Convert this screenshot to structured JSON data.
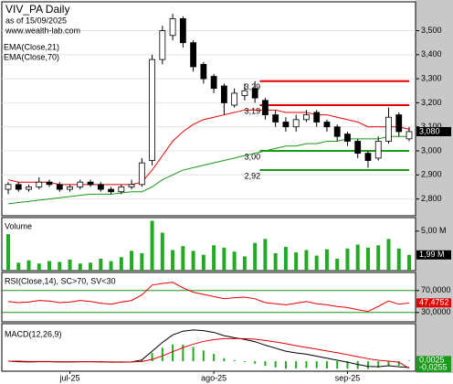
{
  "chart_data": [
    {
      "type": "candlestick",
      "title": "VIV_PA Daily",
      "subtitle": "as of 15/09/2025",
      "source": "www.wealth-lab.com",
      "open": [
        2.84,
        2.86,
        2.84,
        2.85,
        2.87,
        2.86,
        2.84,
        2.85,
        2.87,
        2.86,
        2.84,
        2.83,
        2.85,
        2.86,
        2.96,
        3.38,
        3.48,
        3.55,
        3.45,
        3.36,
        3.31,
        3.27,
        3.19,
        3.23,
        3.26,
        3.21,
        3.15,
        3.12,
        3.1,
        3.13,
        3.16,
        3.12,
        3.1,
        3.07,
        3.04,
        2.99,
        2.97,
        3.04,
        3.15,
        3.05
      ],
      "high": [
        2.87,
        2.87,
        2.86,
        2.89,
        2.88,
        2.87,
        2.86,
        2.88,
        2.88,
        2.87,
        2.85,
        2.86,
        2.88,
        2.97,
        3.4,
        3.52,
        3.57,
        3.56,
        3.46,
        3.37,
        3.32,
        3.28,
        3.26,
        3.28,
        3.29,
        3.22,
        3.17,
        3.14,
        3.15,
        3.17,
        3.17,
        3.13,
        3.11,
        3.08,
        3.05,
        3.0,
        3.06,
        3.18,
        3.16,
        3.1
      ],
      "low": [
        2.82,
        2.83,
        2.83,
        2.84,
        2.85,
        2.83,
        2.83,
        2.84,
        2.85,
        2.83,
        2.82,
        2.82,
        2.84,
        2.85,
        2.94,
        3.36,
        3.46,
        3.43,
        3.33,
        3.28,
        3.24,
        3.15,
        3.18,
        3.21,
        3.2,
        3.13,
        3.1,
        3.08,
        3.08,
        3.12,
        3.1,
        3.08,
        3.04,
        3.02,
        2.97,
        2.93,
        2.96,
        3.03,
        3.06,
        3.04
      ],
      "close": [
        2.86,
        2.84,
        2.85,
        2.87,
        2.86,
        2.84,
        2.85,
        2.87,
        2.86,
        2.84,
        2.83,
        2.85,
        2.86,
        2.95,
        3.38,
        3.5,
        3.55,
        3.45,
        3.35,
        3.3,
        3.26,
        3.2,
        3.24,
        3.25,
        3.22,
        3.15,
        3.12,
        3.1,
        3.13,
        3.15,
        3.12,
        3.1,
        3.06,
        3.04,
        2.99,
        2.96,
        3.04,
        3.14,
        3.08,
        3.08
      ],
      "series": [
        {
          "name": "EMA(Close,21)",
          "color": "#e00000",
          "values": [
            2.88,
            2.87,
            2.87,
            2.87,
            2.87,
            2.86,
            2.86,
            2.86,
            2.86,
            2.86,
            2.86,
            2.86,
            2.86,
            2.87,
            2.92,
            2.98,
            3.04,
            3.08,
            3.11,
            3.13,
            3.14,
            3.15,
            3.16,
            3.17,
            3.17,
            3.17,
            3.17,
            3.16,
            3.16,
            3.16,
            3.15,
            3.15,
            3.14,
            3.13,
            3.12,
            3.1,
            3.1,
            3.1,
            3.1,
            3.09
          ]
        },
        {
          "name": "EMA(Close,70)",
          "color": "#1a9a1a",
          "values": [
            2.78,
            2.785,
            2.79,
            2.795,
            2.8,
            2.805,
            2.81,
            2.815,
            2.82,
            2.82,
            2.82,
            2.825,
            2.83,
            2.83,
            2.85,
            2.88,
            2.9,
            2.92,
            2.93,
            2.94,
            2.95,
            2.96,
            2.97,
            2.98,
            2.99,
            3.0,
            3.01,
            3.02,
            3.02,
            3.03,
            3.03,
            3.04,
            3.04,
            3.05,
            3.05,
            3.05,
            3.05,
            3.06,
            3.06,
            3.06
          ]
        }
      ],
      "levels": [
        {
          "value": 3.29,
          "label": "3,29",
          "color": "#e00000"
        },
        {
          "value": 3.19,
          "label": "3,19",
          "color": "#e00000"
        },
        {
          "value": 3.0,
          "label": "3,00",
          "color": "#1a9a1a"
        },
        {
          "value": 2.92,
          "label": "2,92",
          "color": "#1a9a1a"
        }
      ],
      "up_color": "#ffffff",
      "down_color": "#000000",
      "ylim": [
        2.73,
        3.62
      ],
      "yticks": [
        {
          "value": 2.8,
          "label": "2,800"
        },
        {
          "value": 2.9,
          "label": "2,900"
        },
        {
          "value": 3.0,
          "label": "3,000"
        },
        {
          "value": 3.1,
          "label": "3,100"
        },
        {
          "value": 3.2,
          "label": "3,200"
        },
        {
          "value": 3.3,
          "label": "3,300"
        },
        {
          "value": 3.4,
          "label": "3,400"
        },
        {
          "value": 3.5,
          "label": "3,500"
        }
      ],
      "last_labels": [
        {
          "value": 3.08,
          "label": "3,080",
          "color": "#000000"
        }
      ],
      "grid": true
    },
    {
      "type": "bar",
      "title": "Volume",
      "color": "#22aa22",
      "values": [
        4.6,
        1.0,
        1.3,
        0.9,
        1.2,
        1.1,
        1.4,
        0.9,
        1.0,
        1.5,
        1.2,
        1.7,
        2.5,
        2.2,
        6.3,
        4.8,
        2.6,
        3.1,
        2.5,
        2.0,
        3.2,
        2.9,
        2.4,
        1.8,
        3.5,
        4.0,
        2.2,
        3.0,
        2.3,
        2.6,
        1.9,
        2.7,
        1.5,
        2.8,
        3.3,
        2.9,
        3.2,
        4.0,
        2.8,
        1.99
      ],
      "ylim": [
        0,
        6.7
      ],
      "yticks": [
        {
          "value": 5,
          "label": "5,00 M"
        }
      ],
      "last_labels": [
        {
          "value": 1.99,
          "label": "1,99 M",
          "color": "#000000"
        }
      ]
    },
    {
      "type": "line",
      "title": "RSI(Close,14), SC>70, SV<30",
      "color": "#e00000",
      "band_color": "#1a9a1a",
      "values": [
        50,
        48,
        49,
        52,
        51,
        48,
        49,
        52,
        50,
        47,
        45,
        49,
        52,
        62,
        80,
        83,
        85,
        75,
        67,
        63,
        59,
        55,
        57,
        58,
        55,
        48,
        46,
        44,
        47,
        50,
        46,
        44,
        41,
        39,
        35,
        32,
        41,
        51,
        45,
        47.4752
      ],
      "ylim": [
        13,
        103
      ],
      "yticks": [
        {
          "value": 70,
          "label": "70,0000"
        },
        {
          "value": 30,
          "label": "30,0000"
        }
      ],
      "last_labels": [
        {
          "value": 47.4752,
          "label": "47,4752",
          "color": "#e00000"
        }
      ]
    },
    {
      "type": "macd",
      "title": "MACD(12,26,9)",
      "categories": [
        null,
        null,
        null,
        null,
        null,
        null,
        "jul-25",
        null,
        null,
        null,
        null,
        null,
        null,
        null,
        null,
        null,
        null,
        null,
        null,
        null,
        "ago-25",
        null,
        null,
        null,
        null,
        null,
        null,
        null,
        null,
        null,
        null,
        null,
        null,
        "sep-25",
        null,
        null,
        null,
        null,
        null,
        null
      ],
      "lines": [
        {
          "color": "#000000",
          "values": [
            0,
            -0.002,
            -0.003,
            -0.002,
            -0.002,
            -0.003,
            -0.003,
            -0.002,
            -0.002,
            -0.003,
            -0.004,
            -0.004,
            -0.003,
            0.005,
            0.04,
            0.075,
            0.105,
            0.12,
            0.125,
            0.122,
            0.115,
            0.102,
            0.094,
            0.087,
            0.078,
            0.064,
            0.052,
            0.04,
            0.033,
            0.028,
            0.02,
            0.012,
            0.004,
            -0.004,
            -0.013,
            -0.021,
            -0.022,
            -0.018,
            -0.022,
            -0.0255
          ]
        },
        {
          "color": "#e00000",
          "values": [
            0,
            0,
            -0.001,
            -0.001,
            -0.001,
            -0.002,
            -0.002,
            -0.002,
            -0.002,
            -0.002,
            -0.003,
            -0.003,
            -0.003,
            -0.001,
            0.007,
            0.021,
            0.038,
            0.054,
            0.068,
            0.079,
            0.086,
            0.09,
            0.09,
            0.09,
            0.088,
            0.083,
            0.077,
            0.07,
            0.062,
            0.055,
            0.048,
            0.041,
            0.034,
            0.026,
            0.018,
            0.01,
            0.004,
            0,
            -0.004,
            -0.028
          ]
        }
      ],
      "histogram": {
        "color": "#22aa22",
        "values": [
          0,
          -0.002,
          -0.002,
          -0.001,
          -0.001,
          -0.001,
          -0.001,
          0,
          0,
          -0.001,
          -0.001,
          -0.001,
          0,
          0.006,
          0.033,
          0.054,
          0.067,
          0.066,
          0.057,
          0.043,
          0.029,
          0.012,
          0.004,
          -0.003,
          -0.01,
          -0.019,
          -0.025,
          -0.03,
          -0.029,
          -0.027,
          -0.028,
          -0.029,
          -0.03,
          -0.03,
          -0.031,
          -0.031,
          -0.026,
          -0.018,
          -0.018,
          0.0025
        ]
      },
      "ylim": [
        -0.04,
        0.15
      ],
      "last_labels": [
        {
          "value": 0.0025,
          "label": "0,0025",
          "color": "#1a9a1a"
        },
        {
          "value": -0.0255,
          "label": "-0,0255",
          "color": "#1a9a1a"
        }
      ]
    }
  ]
}
